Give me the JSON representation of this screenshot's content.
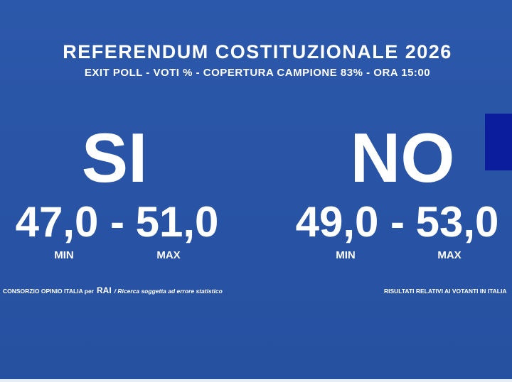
{
  "header": {
    "title": "REFERENDUM COSTITUZIONALE 2026",
    "subtitle": "EXIT POLL - VOTI % - COPERTURA CAMPIONE 83% - ORA 15:00"
  },
  "options": [
    {
      "label": "SI",
      "min": "47,0",
      "separator": "-",
      "max": "51,0",
      "min_label": "MIN",
      "max_label": "MAX"
    },
    {
      "label": "NO",
      "min": "49,0",
      "separator": "-",
      "max": "53,0",
      "min_label": "MIN",
      "max_label": "MAX"
    }
  ],
  "footer": {
    "source_prefix": "CONSORZIO OPINIO ITALIA per",
    "source_brand": "RAI",
    "source_note": "/ Ricerca soggetta ad errore statistico",
    "note": "RISULTATI RELATIVI AI VOTANTI IN ITALIA"
  }
}
